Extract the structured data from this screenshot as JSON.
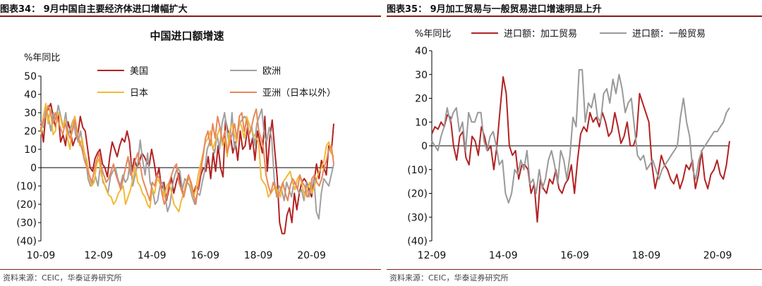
{
  "left": {
    "figure_title": "图表34： 9月中国自主要经济体进口增幅扩大",
    "source": "资料来源：CEIC，华泰证券研究所",
    "chart_data": {
      "type": "line",
      "title": "中国进口额增速",
      "ylabel": "%年同比",
      "ylim": [
        -40,
        50
      ],
      "yticks": [
        50,
        40,
        30,
        20,
        10,
        0,
        -10,
        -20,
        -30,
        -40
      ],
      "ytick_labels": [
        "50",
        "40",
        "30",
        "20",
        "10",
        "0",
        "(10)",
        "(20)",
        "(30)",
        "(40)"
      ],
      "xlim": [
        0,
        132
      ],
      "xticks": [
        0,
        26,
        50,
        74,
        98,
        122
      ],
      "xtick_labels": [
        "10-09",
        "12-09",
        "14-09",
        "16-09",
        "18-09",
        "20-09"
      ],
      "grid": false,
      "legend": "top",
      "series": [
        {
          "name": "美国",
          "color": "#b22222",
          "values": [
            24,
            14,
            30,
            32,
            35,
            28,
            22,
            30,
            14,
            18,
            12,
            25,
            20,
            12,
            16,
            18,
            28,
            22,
            20,
            10,
            0,
            -2,
            5,
            8,
            10,
            2,
            0,
            -5,
            6,
            14,
            10,
            6,
            12,
            16,
            14,
            20,
            14,
            -2,
            5,
            0,
            3,
            8,
            6,
            3,
            1,
            10,
            3,
            -6,
            0,
            -12,
            -8,
            -18,
            -12,
            -5,
            -14,
            -8,
            -3,
            -10,
            -16,
            -10,
            -5,
            -8,
            -14,
            -10,
            -12,
            -4,
            0,
            -2,
            6,
            -6,
            8,
            -2,
            12,
            0,
            -5,
            26,
            20,
            18,
            8,
            14,
            4,
            20,
            10,
            12,
            22,
            10,
            16,
            4,
            20,
            14,
            8,
            28,
            -2,
            16,
            26,
            10,
            -5,
            -30,
            -36,
            -36,
            -26,
            -22,
            -30,
            -14,
            -23,
            -14,
            -8,
            -6,
            -8,
            -12,
            -16,
            -8,
            2,
            -6,
            4,
            0,
            -4,
            12,
            8,
            24
          ]
        },
        {
          "name": "欧洲",
          "color": "#a0a0a0",
          "values": [
            25,
            22,
            32,
            28,
            20,
            30,
            26,
            34,
            28,
            22,
            30,
            18,
            22,
            26,
            18,
            14,
            20,
            10,
            6,
            -6,
            -10,
            -8,
            -5,
            -10,
            2,
            -8,
            -10,
            -14,
            -5,
            -2,
            0,
            -6,
            -10,
            -4,
            -8,
            -6,
            4,
            -10,
            -4,
            2,
            15,
            4,
            -4,
            8,
            -8,
            -12,
            -20,
            -18,
            -10,
            -8,
            -15,
            -24,
            -20,
            -10,
            -4,
            0,
            -2,
            -12,
            -6,
            -8,
            -10,
            -16,
            -20,
            -14,
            -15,
            -8,
            -2,
            10,
            14,
            12,
            8,
            18,
            10,
            24,
            30,
            20,
            12,
            30,
            10,
            16,
            24,
            26,
            28,
            26,
            18,
            22,
            12,
            24,
            28,
            32,
            18,
            14,
            22,
            16,
            -6,
            -16,
            -10,
            -12,
            -18,
            -8,
            -12,
            -16,
            -8,
            -10,
            -14,
            -12,
            -18,
            -8,
            -16,
            -12,
            -6,
            -24,
            -28,
            -14,
            -6,
            -8,
            -10,
            -4,
            2
          ]
        },
        {
          "name": "日本",
          "color": "#f2b935",
          "values": [
            18,
            28,
            35,
            24,
            32,
            18,
            20,
            30,
            28,
            22,
            26,
            16,
            10,
            24,
            28,
            20,
            12,
            16,
            8,
            4,
            -5,
            -10,
            -8,
            2,
            5,
            -4,
            -8,
            -12,
            -15,
            -16,
            -20,
            -18,
            -14,
            -12,
            -10,
            -20,
            -16,
            -12,
            -6,
            0,
            -8,
            -10,
            -14,
            -16,
            -20,
            -22,
            -12,
            -14,
            -6,
            -8,
            -12,
            -16,
            -10,
            -8,
            -14,
            -20,
            -22,
            -24,
            -18,
            -14,
            -8,
            -4,
            -10,
            -16,
            -12,
            -4,
            2,
            8,
            14,
            16,
            20,
            10,
            14,
            18,
            22,
            12,
            16,
            6,
            20,
            24,
            18,
            14,
            26,
            22,
            16,
            28,
            24,
            20,
            18,
            16,
            14,
            -6,
            -8,
            -10,
            -16,
            -14,
            -12,
            -10,
            -14,
            -16,
            -8,
            -6,
            -4,
            -2,
            -8,
            -12,
            -6,
            -4,
            -10,
            -16,
            -12,
            -8,
            -14,
            -10,
            -6,
            -2,
            0,
            4,
            12,
            14,
            8,
            6
          ]
        },
        {
          "name": "亚洲（日本以外）",
          "color": "#e8885a",
          "values": [
            22,
            26,
            28,
            34,
            30,
            24,
            30,
            26,
            22,
            18,
            24,
            20,
            16,
            20,
            26,
            18,
            14,
            10,
            4,
            0,
            -4,
            -8,
            -2,
            4,
            8,
            0,
            -4,
            -8,
            -6,
            -2,
            2,
            -4,
            -8,
            -12,
            -6,
            0,
            6,
            -4,
            -2,
            4,
            8,
            2,
            -6,
            -10,
            -14,
            -18,
            -8,
            -10,
            -4,
            -6,
            -14,
            -20,
            -16,
            -8,
            -4,
            0,
            2,
            -8,
            -12,
            -16,
            -10,
            -4,
            -8,
            -14,
            -20,
            -10,
            -2,
            6,
            16,
            20,
            12,
            24,
            16,
            28,
            22,
            14,
            20,
            8,
            14,
            18,
            24,
            16,
            28,
            30,
            20,
            26,
            18,
            22,
            28,
            32,
            20,
            16,
            10,
            -4,
            -10,
            -14,
            -8,
            -12,
            -16,
            -12,
            -8,
            -14,
            -18,
            -10,
            -6,
            -8,
            -12,
            -4,
            -8,
            -10,
            -16,
            -14,
            -6,
            -4,
            -8,
            -10,
            -6,
            0,
            4,
            10,
            12,
            2
          ]
        }
      ]
    }
  },
  "right": {
    "figure_title": "图表35： 9月加工贸易与一般贸易进口增速明显上升",
    "source": "资料来源：CEIC，华泰证券研究所",
    "chart_data": {
      "type": "line",
      "ylabel": "%年同比",
      "ylim": [
        -40,
        40
      ],
      "yticks": [
        40,
        30,
        20,
        10,
        0,
        -10,
        -20,
        -30,
        -40
      ],
      "ytick_labels": [
        "40",
        "30",
        "20",
        "10",
        "0",
        "(10)",
        "(20)",
        "(30)",
        "(40)"
      ],
      "xlim": [
        0,
        100
      ],
      "xticks": [
        0,
        24,
        48,
        72,
        96
      ],
      "xtick_labels": [
        "12-09",
        "14-09",
        "16-09",
        "18-09",
        "20-09"
      ],
      "grid": false,
      "legend": "top",
      "series": [
        {
          "name": "进口额：加工贸易",
          "color": "#b22222",
          "values": [
            5,
            8,
            7,
            10,
            8,
            13,
            12,
            0,
            -6,
            4,
            6,
            -5,
            -8,
            4,
            2,
            -4,
            8,
            4,
            -2,
            0,
            -10,
            0,
            15,
            29,
            22,
            0,
            -4,
            -2,
            -14,
            -8,
            -8,
            -10,
            -20,
            -16,
            -32,
            -14,
            -18,
            -20,
            -14,
            -16,
            -10,
            -18,
            -20,
            -16,
            -14,
            -8,
            -20,
            -6,
            5,
            8,
            6,
            14,
            10,
            12,
            8,
            14,
            10,
            4,
            6,
            14,
            8,
            1,
            4,
            10,
            0,
            0,
            4,
            22,
            18,
            14,
            10,
            -8,
            -18,
            -12,
            -4,
            -8,
            -10,
            -14,
            -16,
            -12,
            -18,
            -14,
            -8,
            -10,
            -6,
            -18,
            -12,
            -2,
            -14,
            -18,
            -12,
            -10,
            -6,
            -12,
            -14,
            -8,
            2
          ]
        },
        {
          "name": "进口额：一般贸易",
          "color": "#999999",
          "values": [
            2,
            0,
            -2,
            4,
            8,
            16,
            10,
            14,
            16,
            6,
            10,
            -2,
            14,
            10,
            10,
            14,
            14,
            2,
            -2,
            4,
            6,
            0,
            -8,
            -6,
            -20,
            -24,
            -20,
            -10,
            -12,
            -6,
            -10,
            -2,
            -16,
            -14,
            -20,
            -10,
            -18,
            -14,
            -6,
            -2,
            -8,
            -16,
            -2,
            -6,
            -14,
            -4,
            12,
            8,
            32,
            32,
            10,
            18,
            16,
            22,
            12,
            10,
            22,
            24,
            18,
            28,
            22,
            30,
            24,
            14,
            18,
            20,
            8,
            -4,
            -6,
            -4,
            -10,
            -8,
            -6,
            -10,
            -14,
            -10,
            -8,
            -6,
            -4,
            -2,
            0,
            12,
            20,
            10,
            4,
            -10,
            -14,
            -6,
            -2,
            0,
            2,
            4,
            6,
            6,
            8,
            10,
            14,
            16
          ]
        }
      ]
    }
  }
}
